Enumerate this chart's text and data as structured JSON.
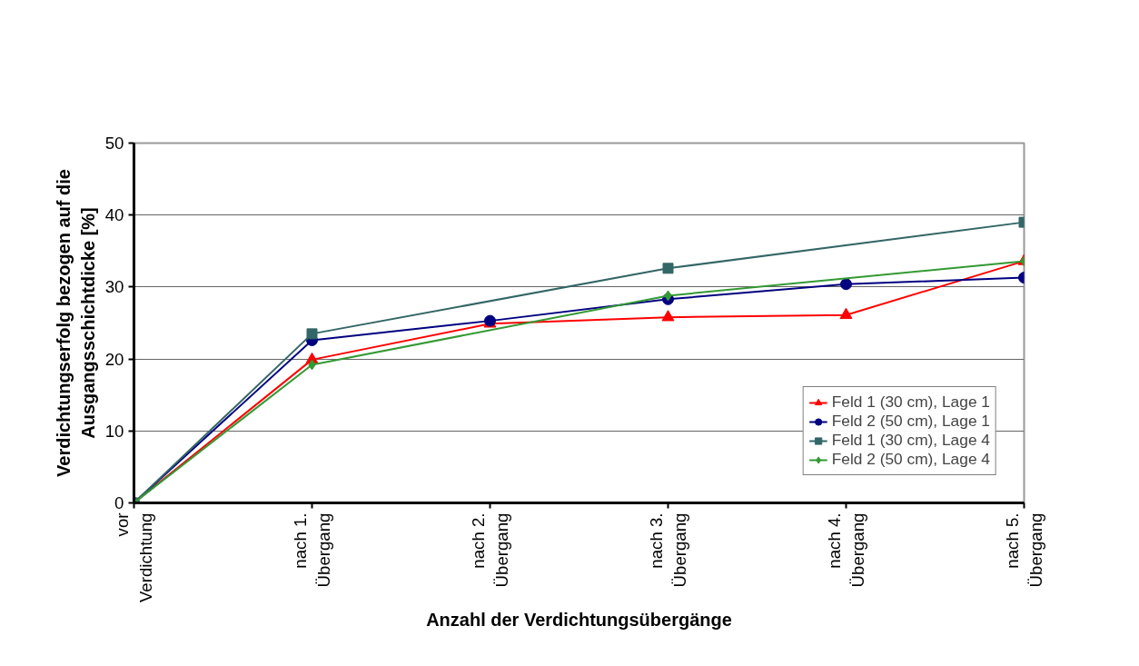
{
  "chart_data": {
    "type": "line",
    "xlabel": "Anzahl der Verdichtungsübergänge",
    "ylabel": "Verdichtungserfolg bezogen auf die\nAusgangsschichtdicke [%]",
    "categories": [
      "vor\nVerdichtung",
      "nach 1.\nÜbergang",
      "nach 2.\nÜbergang",
      "nach 3.\nÜbergang",
      "nach 4.\nÜbergang",
      "nach 5.\nÜbergang"
    ],
    "series": [
      {
        "name": "Feld 1 (30 cm), Lage 1",
        "color": "#ff0000",
        "marker": "triangle",
        "values": [
          0,
          19.9,
          24.9,
          25.8,
          26.1,
          33.6
        ]
      },
      {
        "name": "Feld 2 (50 cm), Lage 1",
        "color": "#000080",
        "marker": "circle",
        "values": [
          0,
          22.6,
          25.3,
          28.3,
          30.4,
          31.3
        ]
      },
      {
        "name": "Feld 1 (30 cm), Lage 4",
        "color": "#336666",
        "marker": "square",
        "values": [
          0,
          23.5,
          null,
          32.6,
          null,
          39.0
        ]
      },
      {
        "name": "Feld 2 (50 cm), Lage 4",
        "color": "#339933",
        "marker": "diamond",
        "values": [
          0,
          19.2,
          null,
          28.8,
          null,
          33.6
        ]
      }
    ],
    "ylim": [
      0,
      50
    ],
    "yticks": [
      0,
      10,
      20,
      30,
      40,
      50
    ],
    "grid": "y",
    "legend": "bottom right",
    "line_style": "solid"
  }
}
